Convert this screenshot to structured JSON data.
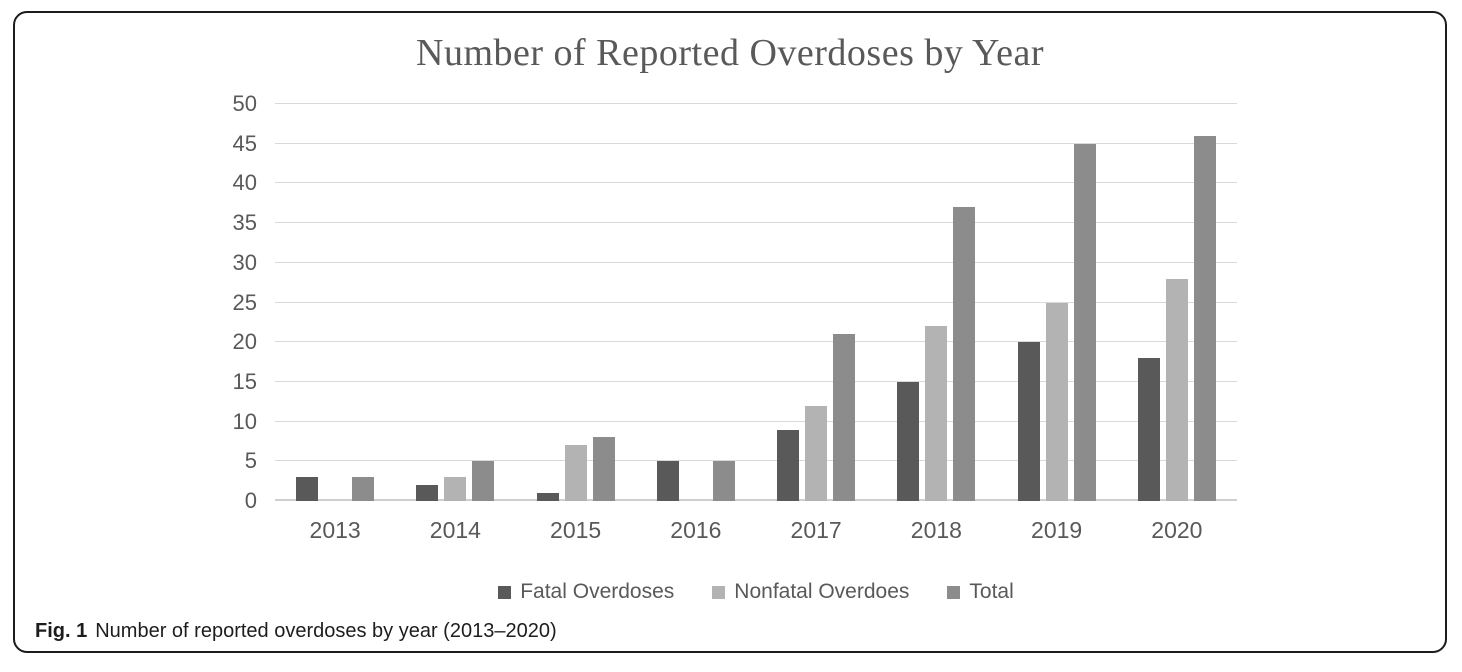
{
  "figure": {
    "caption_label": "Fig. 1",
    "caption_text": "Number of reported overdoses by year (2013–2020)"
  },
  "chart_data": {
    "type": "bar",
    "title": "Number of Reported Overdoses by Year",
    "categories": [
      "2013",
      "2014",
      "2015",
      "2016",
      "2017",
      "2018",
      "2019",
      "2020"
    ],
    "series": [
      {
        "name": "Fatal Overdoses",
        "color": "#595959",
        "values": [
          3,
          2,
          1,
          5,
          9,
          15,
          20,
          18
        ]
      },
      {
        "name": "Nonfatal Overdoes",
        "color": "#b3b3b3",
        "values": [
          0,
          3,
          7,
          0,
          12,
          22,
          25,
          28
        ]
      },
      {
        "name": "Total",
        "color": "#8c8c8c",
        "values": [
          3,
          5,
          8,
          5,
          21,
          37,
          45,
          46
        ]
      }
    ],
    "xlabel": "",
    "ylabel": "",
    "ylim": [
      0,
      50
    ],
    "ytick_step": 5,
    "grid": true,
    "legend_position": "bottom",
    "colors": {
      "axis_text": "#595959",
      "gridline": "#d9d9d9",
      "title_text": "#595959"
    }
  }
}
